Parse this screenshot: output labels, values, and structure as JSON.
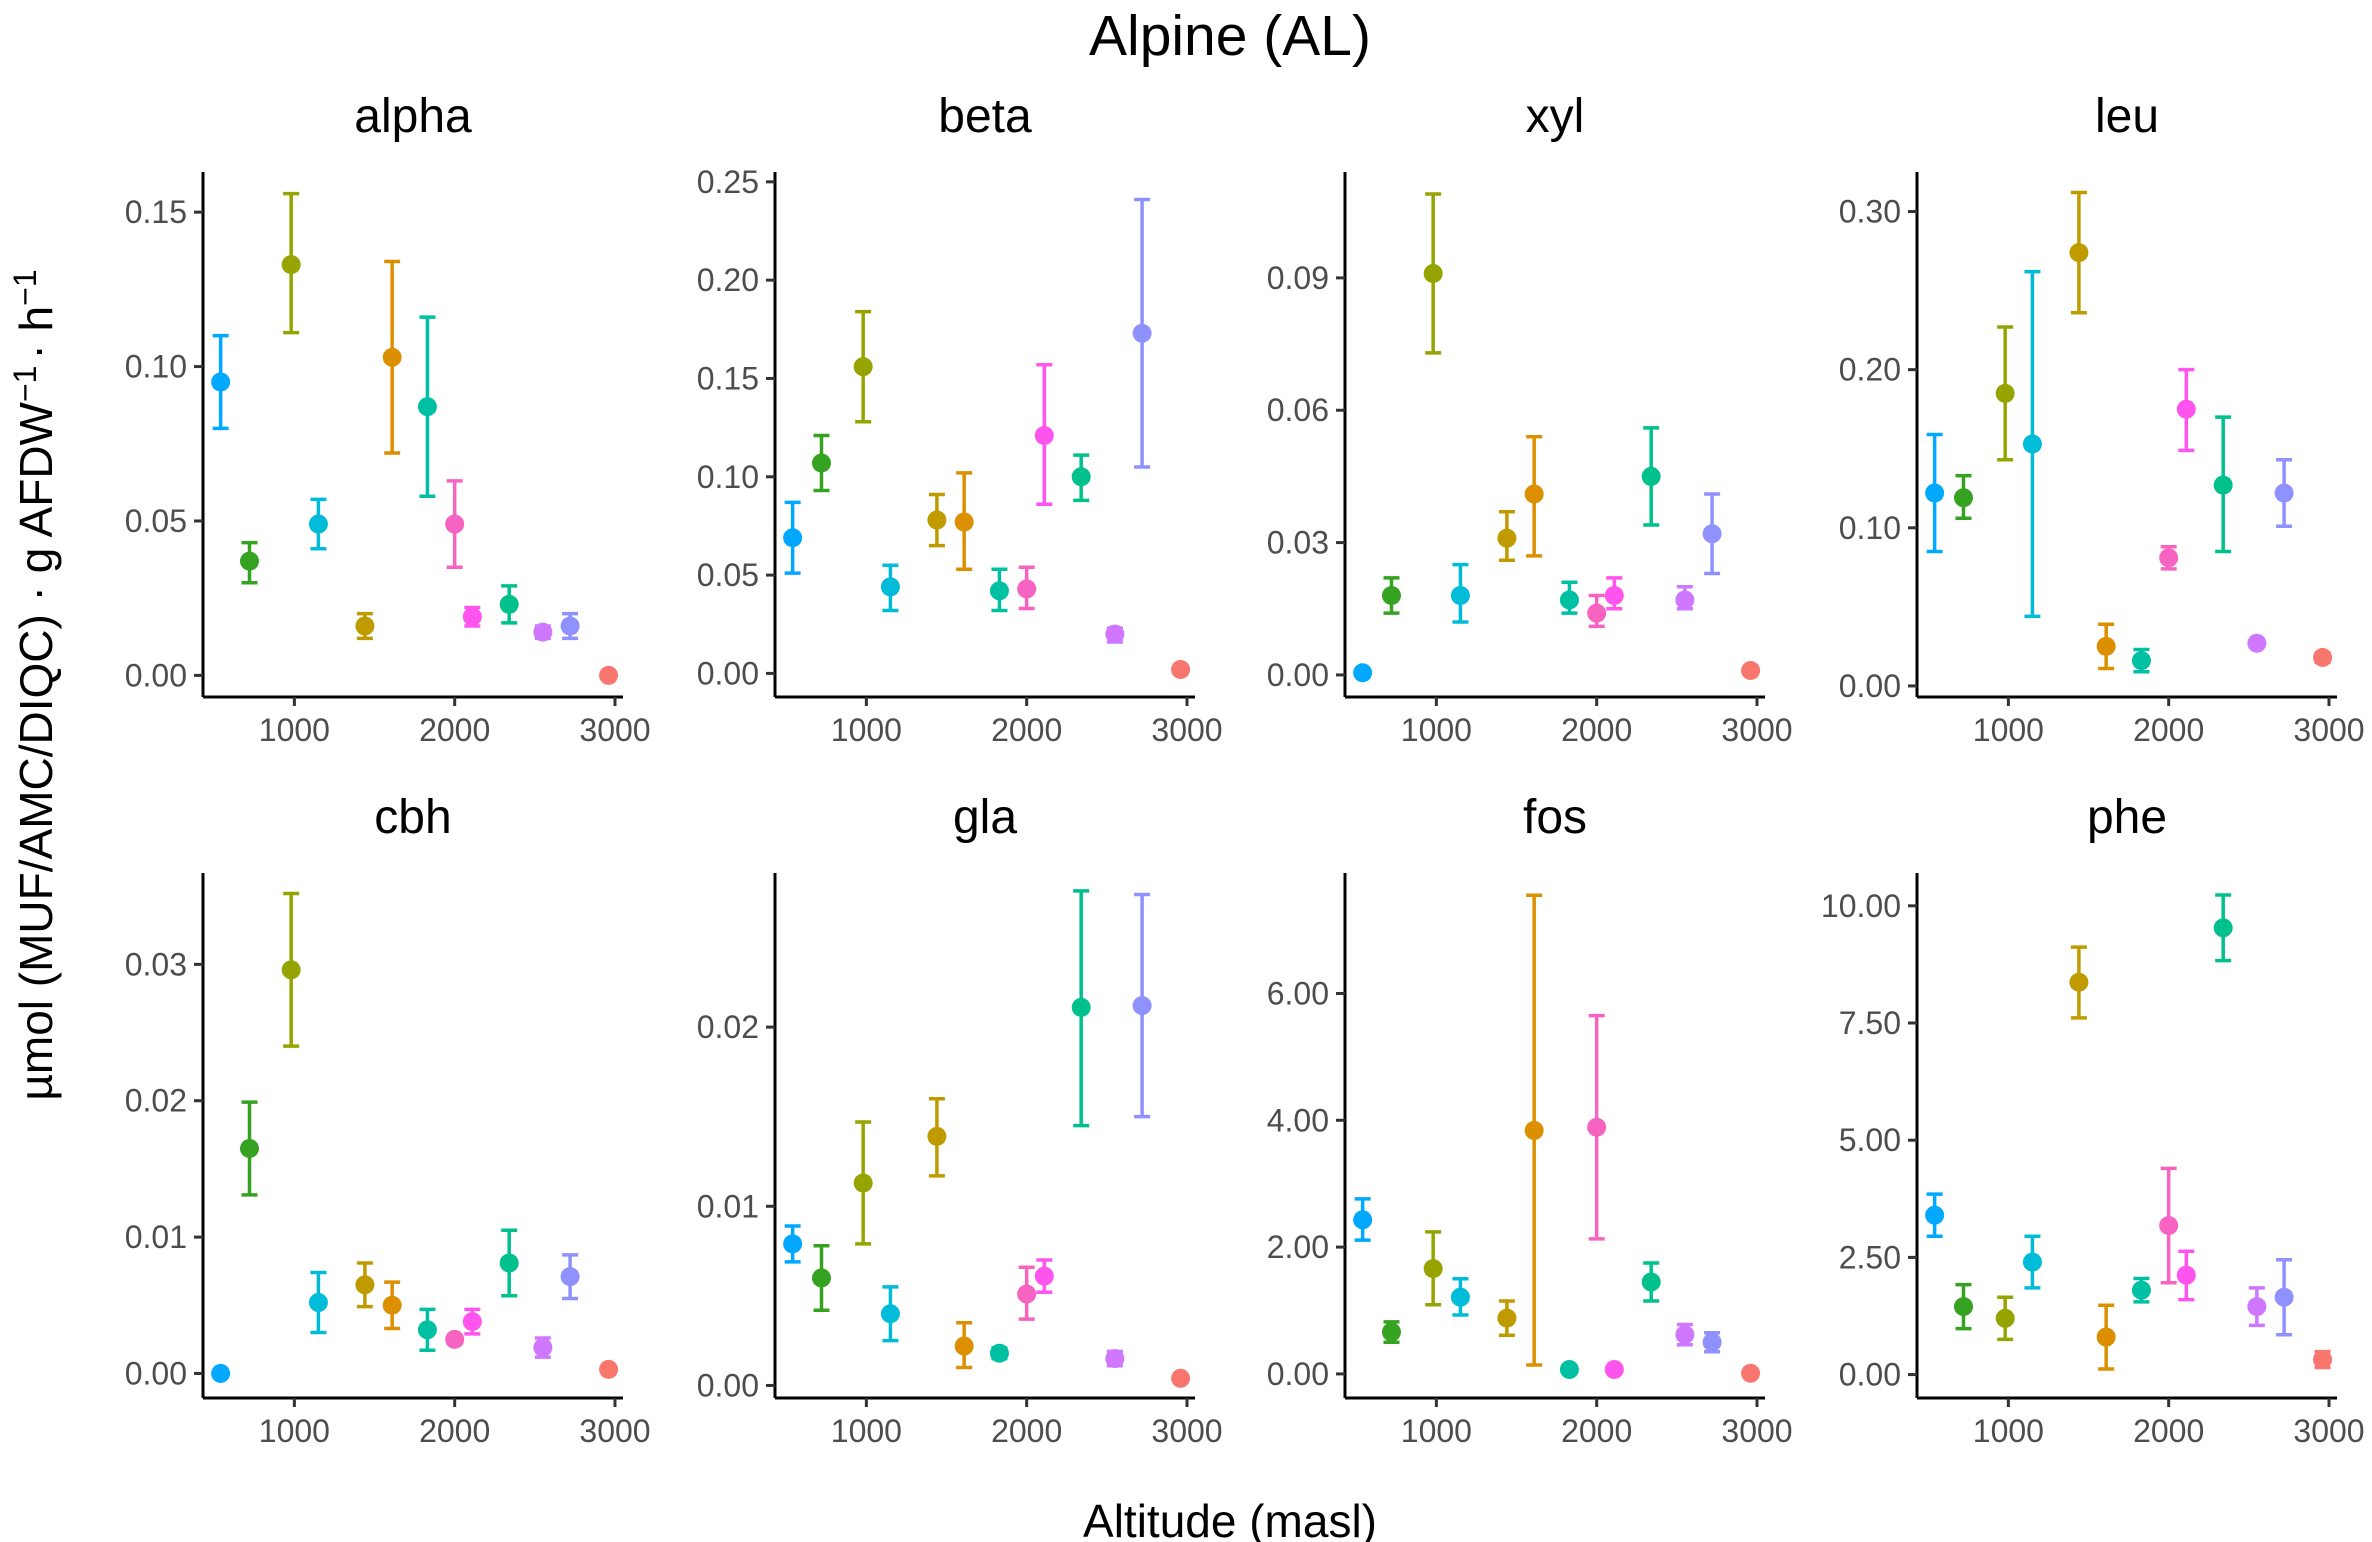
{
  "figure": {
    "title": "Alpine (AL)",
    "xlabel": "Altitude (masl)",
    "ylabel_pre": "µmol (MUF/AMC/DIQC) · g AFDW",
    "ylabel_sup1": "−1",
    "ylabel_mid": "· h",
    "ylabel_sup2": "−1"
  },
  "chart_data": {
    "type": "scatter",
    "error_bars": true,
    "grid": false,
    "legend": "none",
    "title": "Alpine (AL)",
    "xlabel": "Altitude (masl)",
    "ylabel": "µmol (MUF/AMC/DIQC) · g AFDW⁻¹ · h⁻¹",
    "xlim": [
      430,
      3050
    ],
    "xticks": [
      1000,
      2000,
      3000
    ],
    "site_altitudes": [
      540,
      720,
      980,
      1150,
      1440,
      1610,
      1830,
      2000,
      2110,
      2340,
      2550,
      2720,
      2960
    ],
    "site_colors": [
      "#00a9ff",
      "#35a221",
      "#95a400",
      "#00bcd8",
      "#bf9b00",
      "#dc8f00",
      "#00c0a4",
      "#f763c1",
      "#ff55ee",
      "#00c08b",
      "#cf78ff",
      "#8f91ff",
      "#f8766d"
    ],
    "panels": [
      {
        "name": "alpha",
        "ylim": [
          -0.007,
          0.163
        ],
        "ytick_labels": [
          "0.00",
          "0.05",
          "0.10",
          "0.15"
        ],
        "ytick_values": [
          0,
          0.05,
          0.1,
          0.15
        ],
        "points": [
          {
            "x": 540,
            "y": 0.095,
            "lo": 0.08,
            "hi": 0.11,
            "color": "#00a9ff"
          },
          {
            "x": 720,
            "y": 0.037,
            "lo": 0.03,
            "hi": 0.043,
            "color": "#35a221"
          },
          {
            "x": 980,
            "y": 0.133,
            "lo": 0.111,
            "hi": 0.156,
            "color": "#95a400"
          },
          {
            "x": 1150,
            "y": 0.049,
            "lo": 0.041,
            "hi": 0.057,
            "color": "#00bcd8"
          },
          {
            "x": 1440,
            "y": 0.016,
            "lo": 0.012,
            "hi": 0.02,
            "color": "#bf9b00"
          },
          {
            "x": 1610,
            "y": 0.103,
            "lo": 0.072,
            "hi": 0.134,
            "color": "#dc8f00"
          },
          {
            "x": 1830,
            "y": 0.087,
            "lo": 0.058,
            "hi": 0.116,
            "color": "#00c0a4"
          },
          {
            "x": 2000,
            "y": 0.049,
            "lo": 0.035,
            "hi": 0.063,
            "color": "#f763c1"
          },
          {
            "x": 2110,
            "y": 0.019,
            "lo": 0.016,
            "hi": 0.022,
            "color": "#ff55ee"
          },
          {
            "x": 2340,
            "y": 0.023,
            "lo": 0.017,
            "hi": 0.029,
            "color": "#00c08b"
          },
          {
            "x": 2550,
            "y": 0.014,
            "lo": 0.012,
            "hi": 0.016,
            "color": "#cf78ff"
          },
          {
            "x": 2720,
            "y": 0.016,
            "lo": 0.012,
            "hi": 0.02,
            "color": "#8f91ff"
          },
          {
            "x": 2960,
            "y": 0.0,
            "lo": 0.0,
            "hi": 0.001,
            "color": "#f8766d"
          }
        ]
      },
      {
        "name": "beta",
        "ylim": [
          -0.012,
          0.255
        ],
        "ytick_labels": [
          "0.00",
          "0.05",
          "0.10",
          "0.15",
          "0.20",
          "0.25"
        ],
        "ytick_values": [
          0,
          0.05,
          0.1,
          0.15,
          0.2,
          0.25
        ],
        "points": [
          {
            "x": 540,
            "y": 0.069,
            "lo": 0.051,
            "hi": 0.087,
            "color": "#00a9ff"
          },
          {
            "x": 720,
            "y": 0.107,
            "lo": 0.093,
            "hi": 0.121,
            "color": "#35a221"
          },
          {
            "x": 980,
            "y": 0.156,
            "lo": 0.128,
            "hi": 0.184,
            "color": "#95a400"
          },
          {
            "x": 1150,
            "y": 0.044,
            "lo": 0.032,
            "hi": 0.055,
            "color": "#00bcd8"
          },
          {
            "x": 1440,
            "y": 0.078,
            "lo": 0.065,
            "hi": 0.091,
            "color": "#bf9b00"
          },
          {
            "x": 1610,
            "y": 0.077,
            "lo": 0.053,
            "hi": 0.102,
            "color": "#dc8f00"
          },
          {
            "x": 1830,
            "y": 0.042,
            "lo": 0.032,
            "hi": 0.053,
            "color": "#00c0a4"
          },
          {
            "x": 2000,
            "y": 0.043,
            "lo": 0.033,
            "hi": 0.054,
            "color": "#f763c1"
          },
          {
            "x": 2110,
            "y": 0.121,
            "lo": 0.086,
            "hi": 0.157,
            "color": "#ff55ee"
          },
          {
            "x": 2340,
            "y": 0.1,
            "lo": 0.088,
            "hi": 0.111,
            "color": "#00c08b"
          },
          {
            "x": 2550,
            "y": 0.02,
            "lo": 0.016,
            "hi": 0.023,
            "color": "#cf78ff"
          },
          {
            "x": 2720,
            "y": 0.173,
            "lo": 0.105,
            "hi": 0.241,
            "color": "#8f91ff"
          },
          {
            "x": 2960,
            "y": 0.002,
            "lo": 0.001,
            "hi": 0.003,
            "color": "#f8766d"
          }
        ]
      },
      {
        "name": "xyl",
        "ylim": [
          -0.005,
          0.114
        ],
        "ytick_labels": [
          "0.00",
          "0.03",
          "0.06",
          "0.09"
        ],
        "ytick_values": [
          0,
          0.03,
          0.06,
          0.09
        ],
        "points": [
          {
            "x": 540,
            "y": 0.0005,
            "lo": 0.0003,
            "hi": 0.0007,
            "color": "#00a9ff"
          },
          {
            "x": 720,
            "y": 0.018,
            "lo": 0.014,
            "hi": 0.022,
            "color": "#35a221"
          },
          {
            "x": 980,
            "y": 0.091,
            "lo": 0.073,
            "hi": 0.109,
            "color": "#95a400"
          },
          {
            "x": 1150,
            "y": 0.018,
            "lo": 0.012,
            "hi": 0.025,
            "color": "#00bcd8"
          },
          {
            "x": 1440,
            "y": 0.031,
            "lo": 0.026,
            "hi": 0.037,
            "color": "#bf9b00"
          },
          {
            "x": 1610,
            "y": 0.041,
            "lo": 0.027,
            "hi": 0.054,
            "color": "#dc8f00"
          },
          {
            "x": 1830,
            "y": 0.017,
            "lo": 0.014,
            "hi": 0.021,
            "color": "#00c0a4"
          },
          {
            "x": 2000,
            "y": 0.014,
            "lo": 0.011,
            "hi": 0.018,
            "color": "#f763c1"
          },
          {
            "x": 2110,
            "y": 0.018,
            "lo": 0.015,
            "hi": 0.022,
            "color": "#ff55ee"
          },
          {
            "x": 2340,
            "y": 0.045,
            "lo": 0.034,
            "hi": 0.056,
            "color": "#00c08b"
          },
          {
            "x": 2550,
            "y": 0.017,
            "lo": 0.015,
            "hi": 0.02,
            "color": "#cf78ff"
          },
          {
            "x": 2720,
            "y": 0.032,
            "lo": 0.023,
            "hi": 0.041,
            "color": "#8f91ff"
          },
          {
            "x": 2960,
            "y": 0.001,
            "lo": 0.0005,
            "hi": 0.0015,
            "color": "#f8766d"
          }
        ]
      },
      {
        "name": "leu",
        "ylim": [
          -0.007,
          0.325
        ],
        "ytick_labels": [
          "0.00",
          "0.10",
          "0.20",
          "0.30"
        ],
        "ytick_values": [
          0,
          0.1,
          0.2,
          0.3
        ],
        "points": [
          {
            "x": 540,
            "y": 0.122,
            "lo": 0.085,
            "hi": 0.159,
            "color": "#00a9ff"
          },
          {
            "x": 720,
            "y": 0.119,
            "lo": 0.106,
            "hi": 0.133,
            "color": "#35a221"
          },
          {
            "x": 980,
            "y": 0.185,
            "lo": 0.143,
            "hi": 0.227,
            "color": "#95a400"
          },
          {
            "x": 1150,
            "y": 0.153,
            "lo": 0.044,
            "hi": 0.262,
            "color": "#00bcd8"
          },
          {
            "x": 1440,
            "y": 0.274,
            "lo": 0.236,
            "hi": 0.312,
            "color": "#bf9b00"
          },
          {
            "x": 1610,
            "y": 0.025,
            "lo": 0.011,
            "hi": 0.039,
            "color": "#dc8f00"
          },
          {
            "x": 1830,
            "y": 0.016,
            "lo": 0.009,
            "hi": 0.023,
            "color": "#00c0a4"
          },
          {
            "x": 2000,
            "y": 0.081,
            "lo": 0.074,
            "hi": 0.088,
            "color": "#f763c1"
          },
          {
            "x": 2110,
            "y": 0.175,
            "lo": 0.149,
            "hi": 0.2,
            "color": "#ff55ee"
          },
          {
            "x": 2340,
            "y": 0.127,
            "lo": 0.085,
            "hi": 0.17,
            "color": "#00c08b"
          },
          {
            "x": 2550,
            "y": 0.027,
            "lo": 0.025,
            "hi": 0.029,
            "color": "#cf78ff"
          },
          {
            "x": 2720,
            "y": 0.122,
            "lo": 0.101,
            "hi": 0.143,
            "color": "#8f91ff"
          },
          {
            "x": 2960,
            "y": 0.018,
            "lo": 0.015,
            "hi": 0.021,
            "color": "#f8766d"
          }
        ]
      },
      {
        "name": "cbh",
        "ylim": [
          -0.0018,
          0.0367
        ],
        "ytick_labels": [
          "0.00",
          "0.01",
          "0.02",
          "0.03"
        ],
        "ytick_values": [
          0,
          0.01,
          0.02,
          0.03
        ],
        "points": [
          {
            "x": 540,
            "y": 0.0,
            "lo": 0.0,
            "hi": 0.0001,
            "color": "#00a9ff"
          },
          {
            "x": 720,
            "y": 0.0165,
            "lo": 0.0131,
            "hi": 0.0199,
            "color": "#35a221"
          },
          {
            "x": 980,
            "y": 0.0296,
            "lo": 0.024,
            "hi": 0.0352,
            "color": "#95a400"
          },
          {
            "x": 1150,
            "y": 0.0052,
            "lo": 0.003,
            "hi": 0.0074,
            "color": "#00bcd8"
          },
          {
            "x": 1440,
            "y": 0.0065,
            "lo": 0.0049,
            "hi": 0.0081,
            "color": "#bf9b00"
          },
          {
            "x": 1610,
            "y": 0.005,
            "lo": 0.0033,
            "hi": 0.0067,
            "color": "#dc8f00"
          },
          {
            "x": 1830,
            "y": 0.0032,
            "lo": 0.0017,
            "hi": 0.0047,
            "color": "#00c0a4"
          },
          {
            "x": 2000,
            "y": 0.0025,
            "lo": 0.0022,
            "hi": 0.0028,
            "color": "#f763c1"
          },
          {
            "x": 2110,
            "y": 0.0038,
            "lo": 0.0029,
            "hi": 0.0047,
            "color": "#ff55ee"
          },
          {
            "x": 2340,
            "y": 0.0081,
            "lo": 0.0057,
            "hi": 0.0105,
            "color": "#00c08b"
          },
          {
            "x": 2550,
            "y": 0.0019,
            "lo": 0.0012,
            "hi": 0.0026,
            "color": "#cf78ff"
          },
          {
            "x": 2720,
            "y": 0.0071,
            "lo": 0.0055,
            "hi": 0.0087,
            "color": "#8f91ff"
          },
          {
            "x": 2960,
            "y": 0.0003,
            "lo": 0.0002,
            "hi": 0.0004,
            "color": "#f8766d"
          }
        ]
      },
      {
        "name": "gla",
        "ylim": [
          -0.0007,
          0.0286
        ],
        "ytick_labels": [
          "0.00",
          "0.01",
          "0.02"
        ],
        "ytick_values": [
          0,
          0.01,
          0.02
        ],
        "points": [
          {
            "x": 540,
            "y": 0.0079,
            "lo": 0.0069,
            "hi": 0.0089,
            "color": "#00a9ff"
          },
          {
            "x": 720,
            "y": 0.006,
            "lo": 0.0042,
            "hi": 0.0078,
            "color": "#35a221"
          },
          {
            "x": 980,
            "y": 0.0113,
            "lo": 0.0079,
            "hi": 0.0147,
            "color": "#95a400"
          },
          {
            "x": 1150,
            "y": 0.004,
            "lo": 0.0025,
            "hi": 0.0055,
            "color": "#00bcd8"
          },
          {
            "x": 1440,
            "y": 0.0139,
            "lo": 0.0117,
            "hi": 0.016,
            "color": "#bf9b00"
          },
          {
            "x": 1610,
            "y": 0.0022,
            "lo": 0.001,
            "hi": 0.0035,
            "color": "#dc8f00"
          },
          {
            "x": 1830,
            "y": 0.0018,
            "lo": 0.0015,
            "hi": 0.0021,
            "color": "#00c0a4"
          },
          {
            "x": 2000,
            "y": 0.0051,
            "lo": 0.0037,
            "hi": 0.0066,
            "color": "#f763c1"
          },
          {
            "x": 2110,
            "y": 0.0061,
            "lo": 0.0052,
            "hi": 0.007,
            "color": "#ff55ee"
          },
          {
            "x": 2340,
            "y": 0.0211,
            "lo": 0.0145,
            "hi": 0.0276,
            "color": "#00c08b"
          },
          {
            "x": 2550,
            "y": 0.0015,
            "lo": 0.0011,
            "hi": 0.0019,
            "color": "#cf78ff"
          },
          {
            "x": 2720,
            "y": 0.0212,
            "lo": 0.015,
            "hi": 0.0274,
            "color": "#8f91ff"
          },
          {
            "x": 2960,
            "y": 0.0004,
            "lo": 0.0003,
            "hi": 0.0005,
            "color": "#f8766d"
          }
        ]
      },
      {
        "name": "fos",
        "ylim": [
          -0.38,
          7.9
        ],
        "ytick_labels": [
          "0.00",
          "2.00",
          "4.00",
          "6.00"
        ],
        "ytick_values": [
          0,
          2,
          4,
          6
        ],
        "points": [
          {
            "x": 540,
            "y": 2.43,
            "lo": 2.11,
            "hi": 2.76,
            "color": "#00a9ff"
          },
          {
            "x": 720,
            "y": 0.66,
            "lo": 0.5,
            "hi": 0.82,
            "color": "#35a221"
          },
          {
            "x": 980,
            "y": 1.66,
            "lo": 1.09,
            "hi": 2.24,
            "color": "#95a400"
          },
          {
            "x": 1150,
            "y": 1.21,
            "lo": 0.93,
            "hi": 1.5,
            "color": "#00bcd8"
          },
          {
            "x": 1440,
            "y": 0.88,
            "lo": 0.61,
            "hi": 1.15,
            "color": "#bf9b00"
          },
          {
            "x": 1610,
            "y": 3.84,
            "lo": 0.14,
            "hi": 7.55,
            "color": "#dc8f00"
          },
          {
            "x": 1830,
            "y": 0.07,
            "lo": 0.05,
            "hi": 0.09,
            "color": "#00c0a4"
          },
          {
            "x": 2000,
            "y": 3.89,
            "lo": 2.13,
            "hi": 5.65,
            "color": "#f763c1"
          },
          {
            "x": 2110,
            "y": 0.07,
            "lo": 0.05,
            "hi": 0.09,
            "color": "#ff55ee"
          },
          {
            "x": 2340,
            "y": 1.45,
            "lo": 1.15,
            "hi": 1.75,
            "color": "#00c08b"
          },
          {
            "x": 2550,
            "y": 0.62,
            "lo": 0.46,
            "hi": 0.78,
            "color": "#cf78ff"
          },
          {
            "x": 2720,
            "y": 0.5,
            "lo": 0.35,
            "hi": 0.65,
            "color": "#8f91ff"
          },
          {
            "x": 2960,
            "y": 0.01,
            "lo": 0.0,
            "hi": 0.02,
            "color": "#f8766d"
          }
        ]
      },
      {
        "name": "phe",
        "ylim": [
          -0.5,
          10.7
        ],
        "ytick_labels": [
          "0.00",
          "2.50",
          "5.00",
          "7.50",
          "10.00"
        ],
        "ytick_values": [
          0,
          2.5,
          5,
          7.5,
          10
        ],
        "points": [
          {
            "x": 540,
            "y": 3.4,
            "lo": 2.95,
            "hi": 3.85,
            "color": "#00a9ff"
          },
          {
            "x": 720,
            "y": 1.45,
            "lo": 0.98,
            "hi": 1.92,
            "color": "#35a221"
          },
          {
            "x": 980,
            "y": 1.2,
            "lo": 0.75,
            "hi": 1.65,
            "color": "#95a400"
          },
          {
            "x": 1150,
            "y": 2.4,
            "lo": 1.85,
            "hi": 2.95,
            "color": "#00bcd8"
          },
          {
            "x": 1440,
            "y": 8.37,
            "lo": 7.61,
            "hi": 9.12,
            "color": "#bf9b00"
          },
          {
            "x": 1610,
            "y": 0.8,
            "lo": 0.12,
            "hi": 1.48,
            "color": "#dc8f00"
          },
          {
            "x": 1830,
            "y": 1.8,
            "lo": 1.55,
            "hi": 2.05,
            "color": "#00c0a4"
          },
          {
            "x": 2000,
            "y": 3.18,
            "lo": 1.96,
            "hi": 4.4,
            "color": "#f763c1"
          },
          {
            "x": 2110,
            "y": 2.12,
            "lo": 1.6,
            "hi": 2.63,
            "color": "#ff55ee"
          },
          {
            "x": 2340,
            "y": 9.53,
            "lo": 8.83,
            "hi": 10.23,
            "color": "#00c08b"
          },
          {
            "x": 2550,
            "y": 1.45,
            "lo": 1.05,
            "hi": 1.85,
            "color": "#cf78ff"
          },
          {
            "x": 2720,
            "y": 1.65,
            "lo": 0.85,
            "hi": 2.45,
            "color": "#8f91ff"
          },
          {
            "x": 2960,
            "y": 0.32,
            "lo": 0.15,
            "hi": 0.49,
            "color": "#f8766d"
          }
        ]
      }
    ]
  }
}
